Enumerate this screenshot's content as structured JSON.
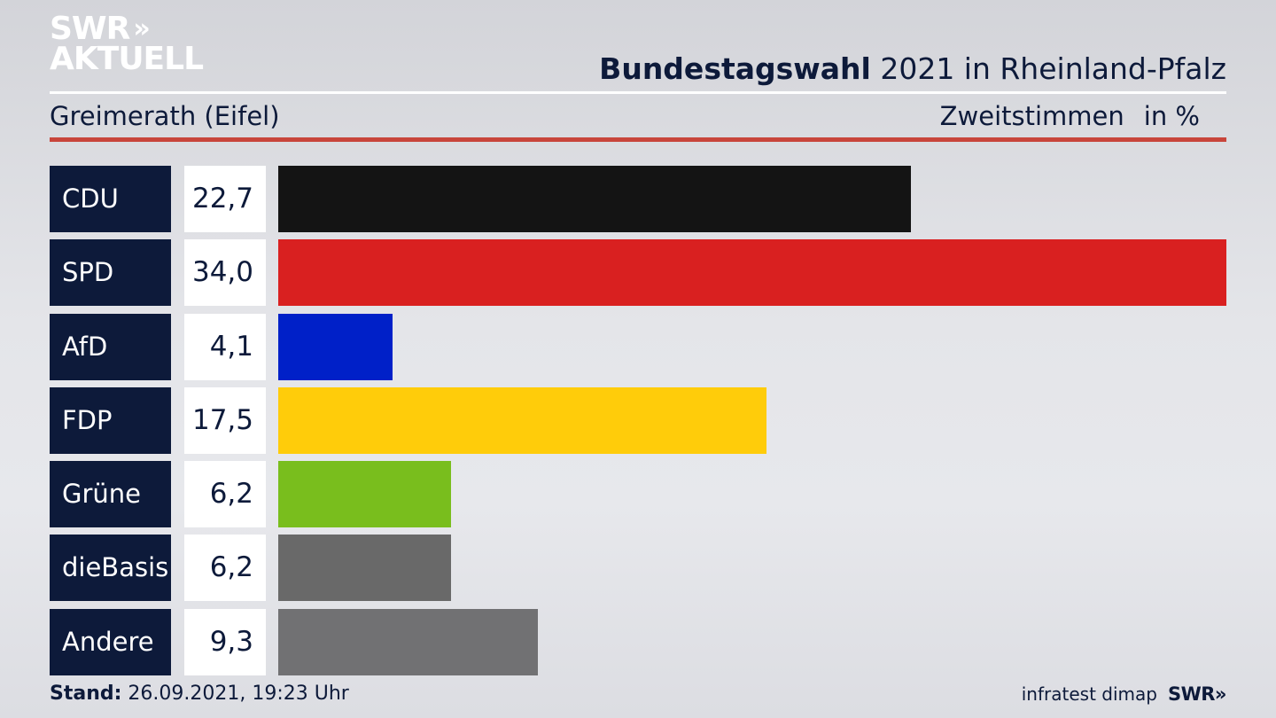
{
  "logo": {
    "line1": "SWR",
    "chevrons": "»",
    "line2": "AKTUELL"
  },
  "header": {
    "title_bold": "Bundestagswahl",
    "title_rest": "2021 in Rheinland-Pfalz"
  },
  "subheader": {
    "region": "Greimerath (Eifel)",
    "vote_type": "Zweitstimmen",
    "unit": "in %"
  },
  "chart_data": {
    "type": "bar",
    "orientation": "horizontal",
    "categories": [
      "CDU",
      "SPD",
      "AfD",
      "FDP",
      "Grüne",
      "dieBasis",
      "Andere"
    ],
    "values": [
      22.7,
      34.0,
      4.1,
      17.5,
      6.2,
      6.2,
      9.3
    ],
    "labels": [
      "22,7",
      "34,0",
      "4,1",
      "17,5",
      "6,2",
      "6,2",
      "9,3"
    ],
    "colors": [
      "#141414",
      "#d92020",
      "#0020c8",
      "#ffcc0a",
      "#79be1d",
      "#696969",
      "#717173"
    ],
    "xlim": [
      0,
      34.0
    ]
  },
  "footer": {
    "stand_label": "Stand:",
    "stand_value": "26.09.2021, 19:23 Uhr",
    "source": "infratest dimap",
    "brand": "SWR",
    "brand_chevrons": "»"
  }
}
